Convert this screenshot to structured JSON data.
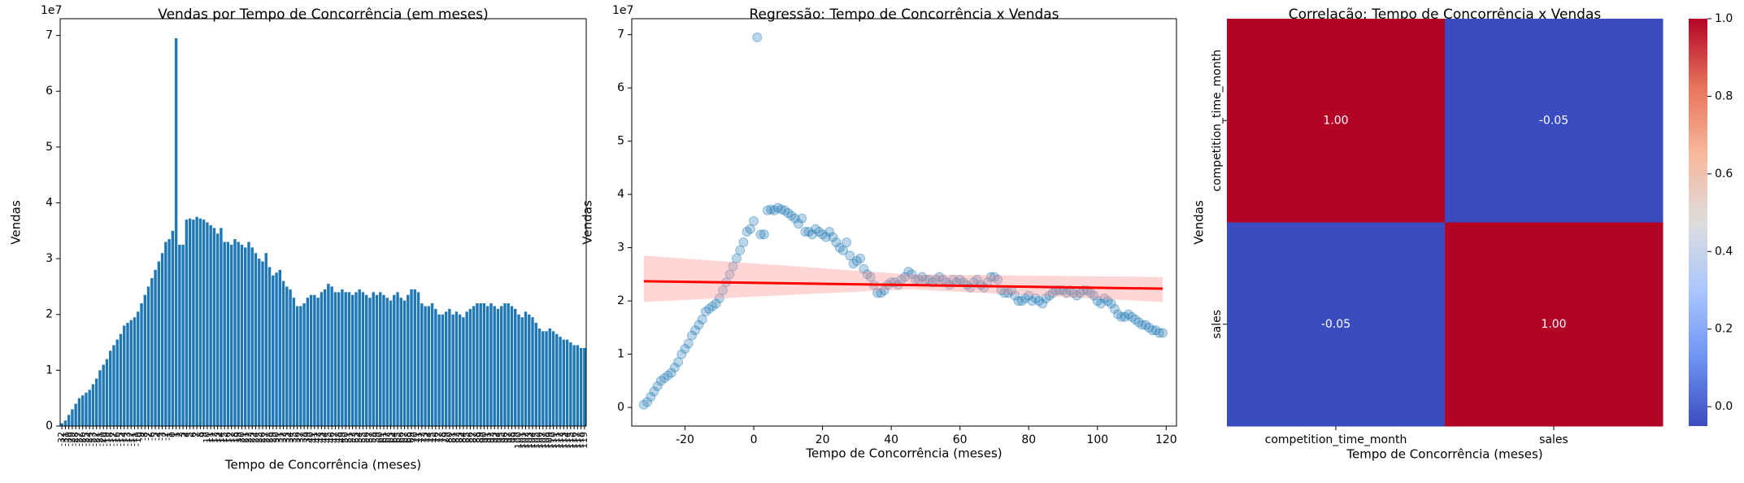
{
  "chart_data": [
    {
      "type": "bar",
      "title": "Vendas por Tempo de Concorrência (em meses)",
      "x_label": "Tempo de Concorrência (meses)",
      "y_label": "Vendas",
      "y_offset_label": "1e7",
      "color": "#1f77b4",
      "categories": [
        "-32",
        "-31",
        "-30",
        "-29",
        "-28",
        "-27",
        "-26",
        "-25",
        "-24",
        "-23",
        "-22",
        "-21",
        "-20",
        "-19",
        "-18",
        "-17",
        "-16",
        "-15",
        "-14",
        "-13",
        "-12",
        "-11",
        "-10",
        "-9",
        "-8",
        "-7",
        "-6",
        "-5",
        "-4",
        "-3",
        "-2",
        "-1",
        "0",
        "1",
        "2",
        "3",
        "4",
        "5",
        "6",
        "7",
        "8",
        "9",
        "10",
        "11",
        "12",
        "13",
        "14",
        "15",
        "16",
        "17",
        "18",
        "19",
        "20",
        "21",
        "22",
        "23",
        "24",
        "25",
        "26",
        "27",
        "28",
        "29",
        "30",
        "31",
        "32",
        "33",
        "34",
        "35",
        "36",
        "37",
        "38",
        "39",
        "40",
        "41",
        "42",
        "43",
        "44",
        "45",
        "46",
        "47",
        "48",
        "49",
        "50",
        "51",
        "52",
        "53",
        "54",
        "55",
        "56",
        "57",
        "58",
        "59",
        "60",
        "61",
        "62",
        "63",
        "64",
        "65",
        "66",
        "67",
        "68",
        "69",
        "70",
        "71",
        "72",
        "73",
        "74",
        "75",
        "76",
        "77",
        "78",
        "79",
        "80",
        "81",
        "82",
        "83",
        "84",
        "85",
        "86",
        "87",
        "88",
        "89",
        "90",
        "91",
        "92",
        "93",
        "94",
        "95",
        "96",
        "97",
        "98",
        "99",
        "100",
        "101",
        "102",
        "103",
        "104",
        "105",
        "106",
        "107",
        "108",
        "109",
        "110",
        "111",
        "112",
        "113",
        "114",
        "115",
        "116",
        "117",
        "118",
        "119"
      ],
      "values": [
        0.05,
        0.1,
        0.2,
        0.3,
        0.4,
        0.5,
        0.55,
        0.6,
        0.65,
        0.75,
        0.85,
        1.0,
        1.1,
        1.2,
        1.35,
        1.45,
        1.55,
        1.65,
        1.8,
        1.85,
        1.9,
        1.95,
        2.05,
        2.2,
        2.35,
        2.5,
        2.65,
        2.8,
        2.95,
        3.1,
        3.3,
        3.35,
        3.5,
        6.95,
        3.25,
        3.25,
        3.7,
        3.72,
        3.7,
        3.75,
        3.72,
        3.7,
        3.65,
        3.6,
        3.55,
        3.45,
        3.55,
        3.3,
        3.3,
        3.25,
        3.35,
        3.3,
        3.25,
        3.2,
        3.3,
        3.2,
        3.1,
        3.0,
        2.95,
        3.1,
        2.85,
        2.7,
        2.75,
        2.8,
        2.6,
        2.5,
        2.45,
        2.3,
        2.15,
        2.15,
        2.2,
        2.3,
        2.35,
        2.35,
        2.3,
        2.4,
        2.45,
        2.55,
        2.5,
        2.4,
        2.4,
        2.45,
        2.4,
        2.4,
        2.35,
        2.4,
        2.45,
        2.4,
        2.35,
        2.3,
        2.4,
        2.35,
        2.4,
        2.35,
        2.3,
        2.25,
        2.35,
        2.4,
        2.3,
        2.25,
        2.35,
        2.45,
        2.45,
        2.4,
        2.2,
        2.15,
        2.15,
        2.2,
        2.1,
        2.0,
        2.0,
        2.05,
        2.1,
        2.0,
        2.05,
        2.0,
        1.95,
        2.05,
        2.1,
        2.15,
        2.2,
        2.2,
        2.2,
        2.15,
        2.2,
        2.15,
        2.1,
        2.15,
        2.2,
        2.2,
        2.15,
        2.1,
        2.0,
        1.95,
        2.05,
        2.0,
        1.95,
        1.85,
        1.75,
        1.7,
        1.7,
        1.75,
        1.7,
        1.65,
        1.6,
        1.55,
        1.55,
        1.5,
        1.45,
        1.45,
        1.4,
        1.4
      ],
      "ylim": [
        0,
        7.3
      ],
      "yticks": [
        0,
        1,
        2,
        3,
        4,
        5,
        6,
        7
      ]
    },
    {
      "type": "scatter",
      "title": "Regressão: Tempo de Concorrência x Vendas",
      "x_label": "Tempo de Concorrência (meses)",
      "y_label": "Vendas",
      "y_offset_label": "1e7",
      "color": "#1f77b4",
      "x": [
        -32,
        -31,
        -30,
        -29,
        -28,
        -27,
        -26,
        -25,
        -24,
        -23,
        -22,
        -21,
        -20,
        -19,
        -18,
        -17,
        -16,
        -15,
        -14,
        -13,
        -12,
        -11,
        -10,
        -9,
        -8,
        -7,
        -6,
        -5,
        -4,
        -3,
        -2,
        -1,
        0,
        1,
        2,
        3,
        4,
        5,
        6,
        7,
        8,
        9,
        10,
        11,
        12,
        13,
        14,
        15,
        16,
        17,
        18,
        19,
        20,
        21,
        22,
        23,
        24,
        25,
        26,
        27,
        28,
        29,
        30,
        31,
        32,
        33,
        34,
        35,
        36,
        37,
        38,
        39,
        40,
        41,
        42,
        43,
        44,
        45,
        46,
        47,
        48,
        49,
        50,
        51,
        52,
        53,
        54,
        55,
        56,
        57,
        58,
        59,
        60,
        61,
        62,
        63,
        64,
        65,
        66,
        67,
        68,
        69,
        70,
        71,
        72,
        73,
        74,
        75,
        76,
        77,
        78,
        79,
        80,
        81,
        82,
        83,
        84,
        85,
        86,
        87,
        88,
        89,
        90,
        91,
        92,
        93,
        94,
        95,
        96,
        97,
        98,
        99,
        100,
        101,
        102,
        103,
        104,
        105,
        106,
        107,
        108,
        109,
        110,
        111,
        112,
        113,
        114,
        115,
        116,
        117,
        118,
        119
      ],
      "values": [
        0.05,
        0.1,
        0.2,
        0.3,
        0.4,
        0.5,
        0.55,
        0.6,
        0.65,
        0.75,
        0.85,
        1.0,
        1.1,
        1.2,
        1.35,
        1.45,
        1.55,
        1.65,
        1.8,
        1.85,
        1.9,
        1.95,
        2.05,
        2.2,
        2.35,
        2.5,
        2.65,
        2.8,
        2.95,
        3.1,
        3.3,
        3.35,
        3.5,
        6.95,
        3.25,
        3.25,
        3.7,
        3.72,
        3.7,
        3.75,
        3.72,
        3.7,
        3.65,
        3.6,
        3.55,
        3.45,
        3.55,
        3.3,
        3.3,
        3.25,
        3.35,
        3.3,
        3.25,
        3.2,
        3.3,
        3.2,
        3.1,
        3.0,
        2.95,
        3.1,
        2.85,
        2.7,
        2.75,
        2.8,
        2.6,
        2.5,
        2.45,
        2.3,
        2.15,
        2.15,
        2.2,
        2.3,
        2.35,
        2.35,
        2.3,
        2.4,
        2.45,
        2.55,
        2.5,
        2.4,
        2.4,
        2.45,
        2.4,
        2.4,
        2.35,
        2.4,
        2.45,
        2.4,
        2.35,
        2.3,
        2.4,
        2.35,
        2.4,
        2.35,
        2.3,
        2.25,
        2.35,
        2.4,
        2.3,
        2.25,
        2.35,
        2.45,
        2.45,
        2.4,
        2.2,
        2.15,
        2.15,
        2.2,
        2.1,
        2.0,
        2.0,
        2.05,
        2.1,
        2.0,
        2.05,
        2.0,
        1.95,
        2.05,
        2.1,
        2.15,
        2.2,
        2.2,
        2.2,
        2.15,
        2.2,
        2.15,
        2.1,
        2.15,
        2.2,
        2.2,
        2.15,
        2.1,
        2.0,
        1.95,
        2.05,
        2.0,
        1.95,
        1.85,
        1.75,
        1.7,
        1.7,
        1.75,
        1.7,
        1.65,
        1.6,
        1.55,
        1.55,
        1.5,
        1.45,
        1.45,
        1.4,
        1.4
      ],
      "regression": {
        "color": "#ff0000",
        "x": [
          -32,
          119
        ],
        "values": [
          2.37,
          2.23
        ]
      },
      "confidence_band": {
        "color": "#ff9999",
        "x": [
          -32,
          45,
          119
        ],
        "lower": [
          1.98,
          2.22,
          1.98
        ],
        "upper": [
          2.85,
          2.5,
          2.45
        ]
      },
      "xlim": [
        -35.5,
        123
      ],
      "xticks": [
        -20,
        0,
        20,
        40,
        60,
        80,
        100,
        120
      ],
      "ylim": [
        -0.35,
        7.3
      ],
      "yticks": [
        0,
        1,
        2,
        3,
        4,
        5,
        6,
        7
      ]
    },
    {
      "type": "heatmap",
      "title": "Correlação: Tempo de Concorrência x Vendas",
      "x_label": "Tempo de Concorrência (meses)",
      "y_label": "Vendas",
      "x_categories": [
        "competition_time_month",
        "sales"
      ],
      "y_categories": [
        "competition_time_month",
        "sales"
      ],
      "values": [
        [
          1.0,
          -0.05
        ],
        [
          -0.05,
          1.0
        ]
      ],
      "value_labels": [
        [
          "1.00",
          "-0.05"
        ],
        [
          "-0.05",
          "1.00"
        ]
      ],
      "colormap": [
        "#3b4cc0",
        "#6f92f3",
        "#aac7fd",
        "#dddcdc",
        "#f7b89c",
        "#e7745b",
        "#b40426"
      ],
      "clim": [
        -0.05,
        1.0
      ],
      "cticks": [
        {
          "value": 0,
          "label": "0.0"
        },
        {
          "value": 0.2,
          "label": "0.2"
        },
        {
          "value": 0.4,
          "label": "0.4"
        },
        {
          "value": 0.6,
          "label": "0.6"
        },
        {
          "value": 0.8,
          "label": "0.8"
        },
        {
          "value": 1.0,
          "label": "1.0"
        }
      ]
    }
  ]
}
